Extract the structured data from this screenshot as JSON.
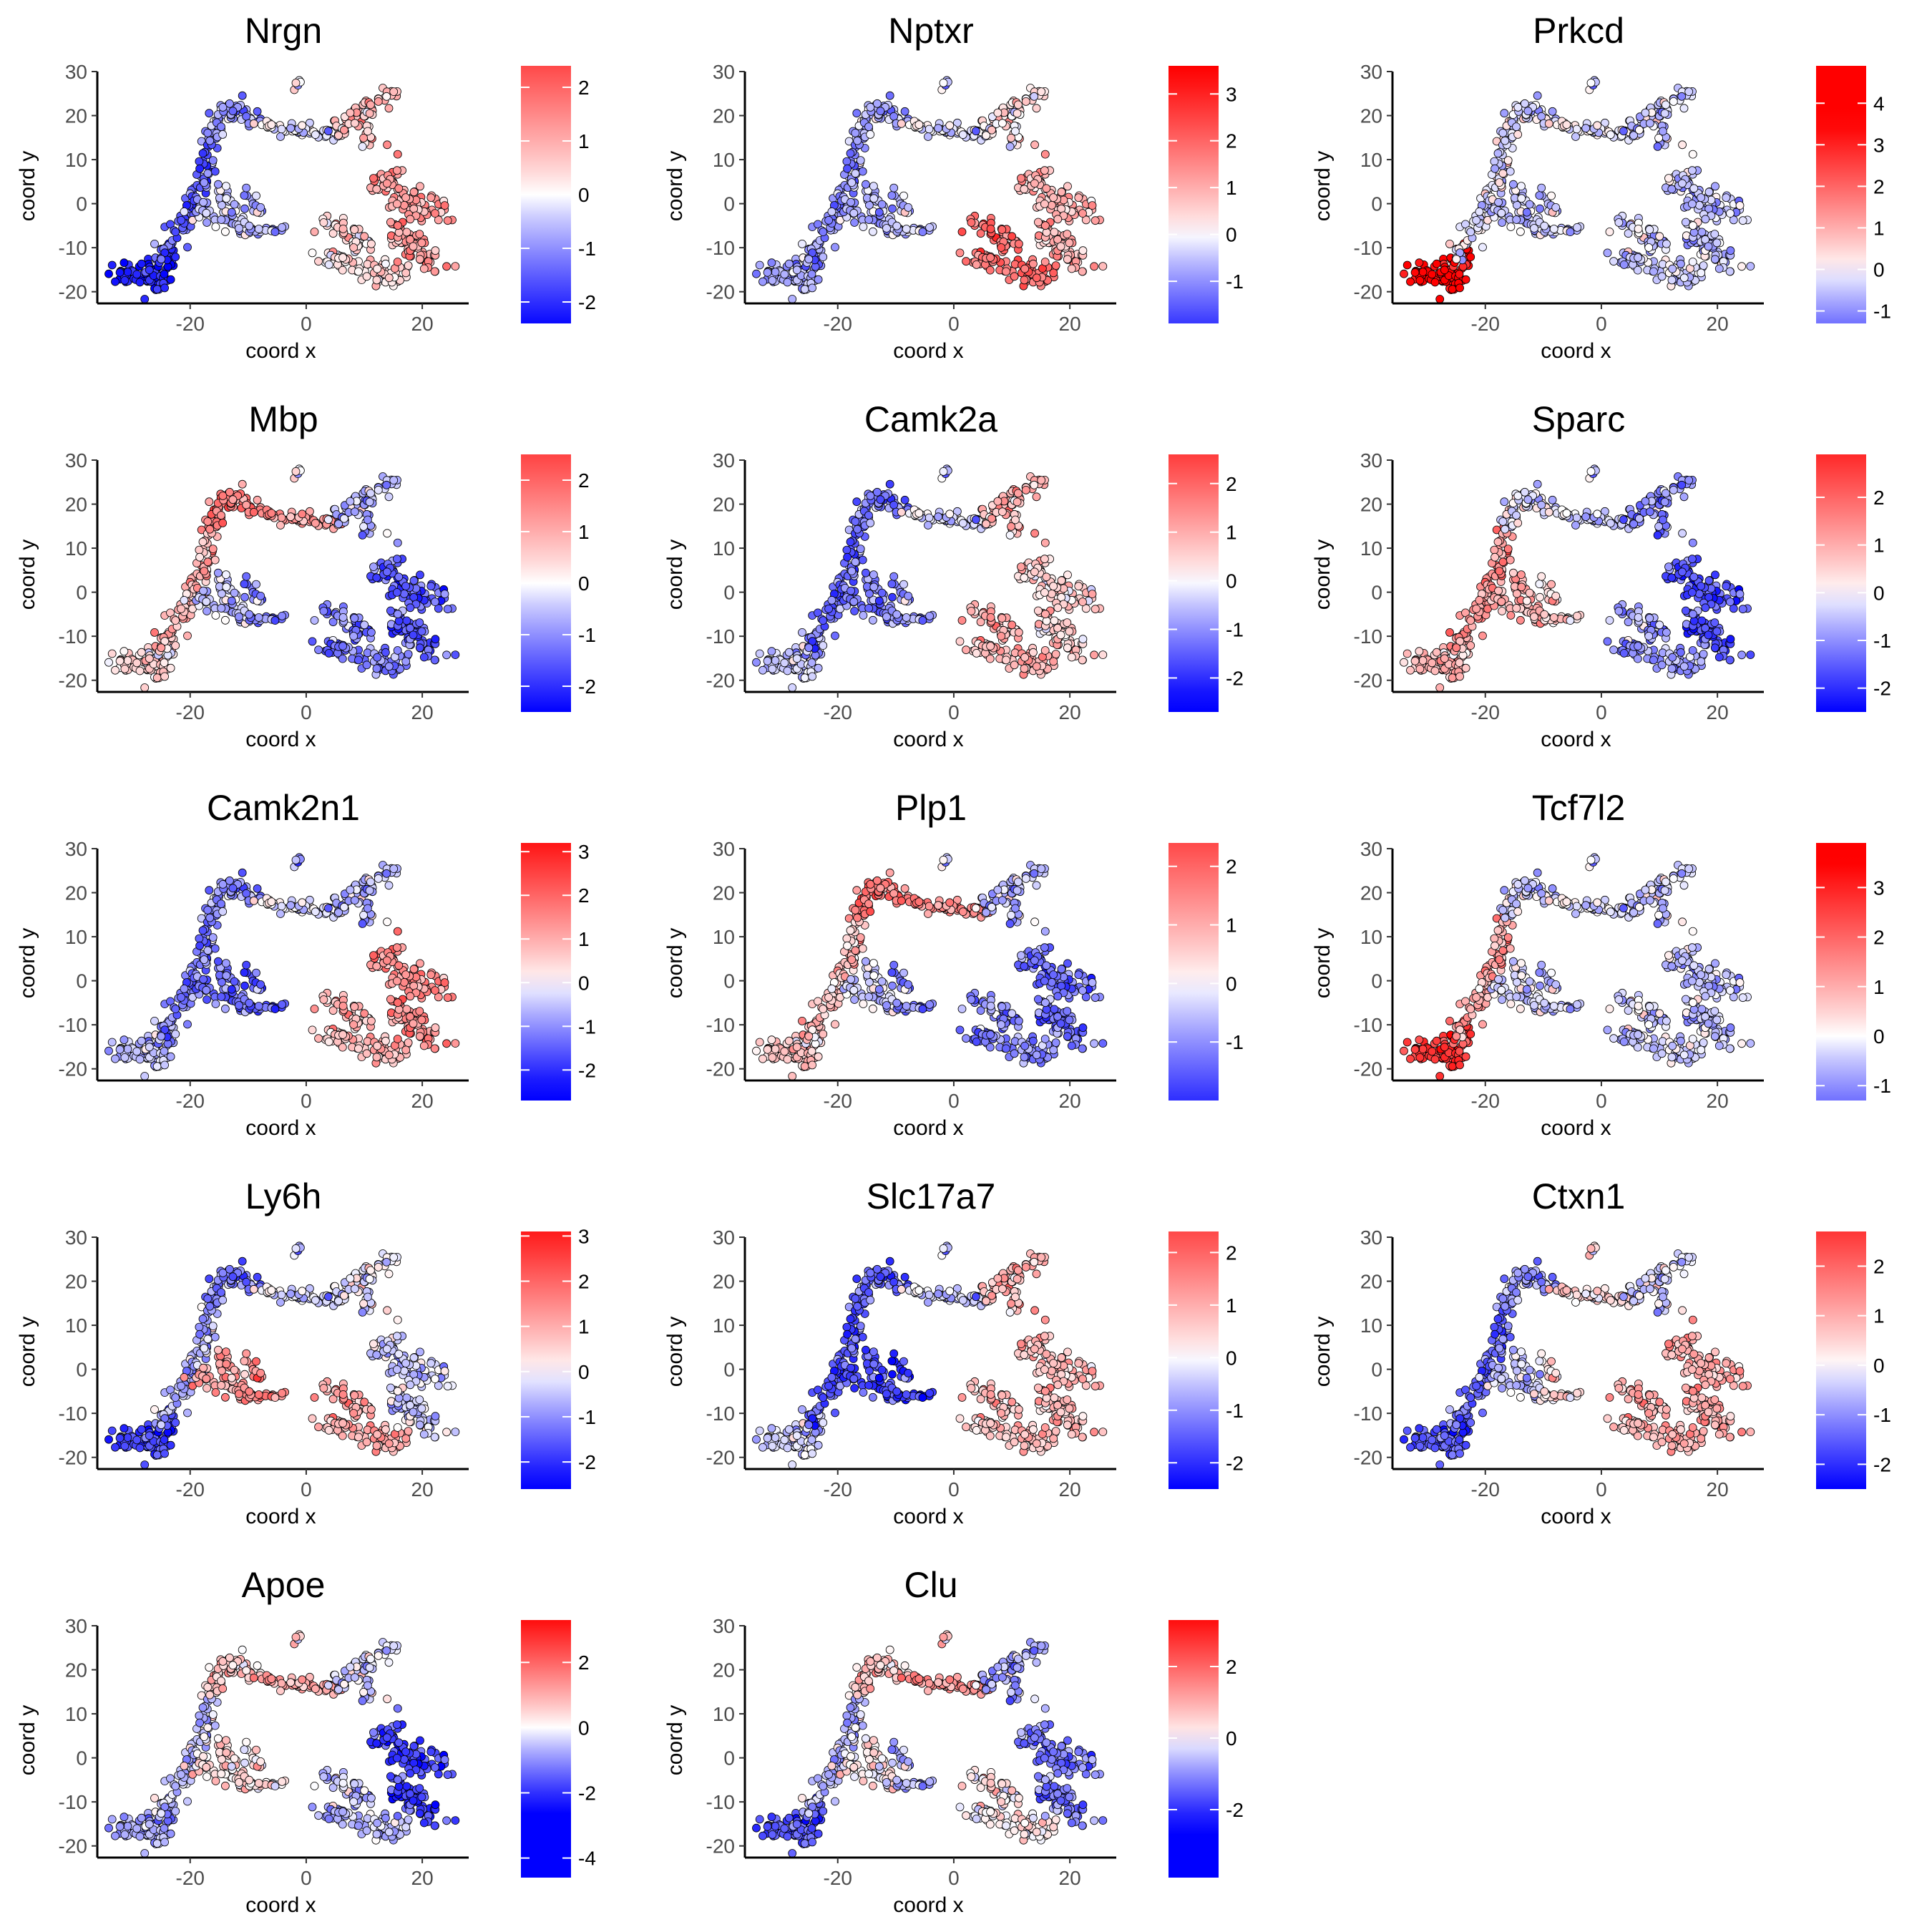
{
  "figure": {
    "point_stroke_color": "#000000",
    "low_color": "#0000ff",
    "mid_color": "#ffffff",
    "high_color": "#ff0000",
    "axis_color": "#000000"
  },
  "chart_data": [
    {
      "type": "scatter",
      "title": "Nrgn",
      "xlabel": "coord x",
      "ylabel": "coord y",
      "xlim": [
        -36,
        28
      ],
      "ylim": [
        -22,
        30
      ],
      "x_ticks": [
        -20,
        0,
        20
      ],
      "y_ticks": [
        -20,
        -10,
        0,
        10,
        20,
        30
      ],
      "colorbar": {
        "min": -2.4,
        "max": 2.4,
        "ticks": [
          -2,
          -1,
          0,
          1,
          2
        ]
      },
      "region_values": {
        "left_tail": -2.2,
        "left_arm": -1.5,
        "left_top": -0.9,
        "top_bridge": -0.3,
        "right_top": 0.8,
        "tip": 0.2,
        "center_blob": -0.4,
        "central_stub": -0.6,
        "lower_cluster": 0.4,
        "right_cluster": 1.2
      },
      "grid": false,
      "legend": "right"
    },
    {
      "type": "scatter",
      "title": "Nptxr",
      "xlabel": "coord x",
      "ylabel": "coord y",
      "xlim": [
        -36,
        28
      ],
      "ylim": [
        -22,
        30
      ],
      "x_ticks": [
        -20,
        0,
        20
      ],
      "y_ticks": [
        -20,
        -10,
        0,
        10,
        20,
        30
      ],
      "colorbar": {
        "min": -1.9,
        "max": 3.6,
        "ticks": [
          -1,
          0,
          1,
          2,
          3
        ]
      },
      "region_values": {
        "left_tail": -0.8,
        "left_arm": -1.0,
        "left_top": -0.7,
        "top_bridge": -0.3,
        "right_top": 0.3,
        "tip": -0.3,
        "center_blob": -0.6,
        "central_stub": -0.4,
        "lower_cluster": 1.8,
        "right_cluster": 0.9
      },
      "grid": false,
      "legend": "right"
    },
    {
      "type": "scatter",
      "title": "Prkcd",
      "xlabel": "coord x",
      "ylabel": "coord y",
      "xlim": [
        -36,
        28
      ],
      "ylim": [
        -22,
        30
      ],
      "x_ticks": [
        -20,
        0,
        20
      ],
      "y_ticks": [
        -20,
        -10,
        0,
        10,
        20,
        30
      ],
      "colorbar": {
        "min": -1.3,
        "max": 4.9,
        "ticks": [
          -1,
          0,
          1,
          2,
          3,
          4
        ]
      },
      "region_values": {
        "left_tail": 3.5,
        "left_arm": -0.2,
        "left_top": -0.3,
        "top_bridge": -0.2,
        "right_top": -0.4,
        "tip": -0.3,
        "center_blob": -0.4,
        "central_stub": -0.3,
        "lower_cluster": -0.4,
        "right_cluster": -0.5
      },
      "grid": false,
      "legend": "right"
    },
    {
      "type": "scatter",
      "title": "Mbp",
      "xlabel": "coord x",
      "ylabel": "coord y",
      "xlim": [
        -36,
        28
      ],
      "ylim": [
        -22,
        30
      ],
      "x_ticks": [
        -20,
        0,
        20
      ],
      "y_ticks": [
        -20,
        -10,
        0,
        10,
        20,
        30
      ],
      "colorbar": {
        "min": -2.5,
        "max": 2.5,
        "ticks": [
          -2,
          -1,
          0,
          1,
          2
        ]
      },
      "region_values": {
        "left_tail": 0.4,
        "left_arm": 0.9,
        "left_top": 1.6,
        "top_bridge": 1.1,
        "right_top": -0.6,
        "tip": 0.2,
        "center_blob": -0.4,
        "central_stub": -1.0,
        "lower_cluster": -1.2,
        "right_cluster": -1.5
      },
      "grid": false,
      "legend": "right"
    },
    {
      "type": "scatter",
      "title": "Camk2a",
      "xlabel": "coord x",
      "ylabel": "coord y",
      "xlim": [
        -36,
        28
      ],
      "ylim": [
        -22,
        30
      ],
      "x_ticks": [
        -20,
        0,
        20
      ],
      "y_ticks": [
        -20,
        -10,
        0,
        10,
        20,
        30
      ],
      "colorbar": {
        "min": -2.7,
        "max": 2.6,
        "ticks": [
          -2,
          -1,
          0,
          1,
          2
        ]
      },
      "region_values": {
        "left_tail": -0.5,
        "left_arm": -1.4,
        "left_top": -1.2,
        "top_bridge": -0.4,
        "right_top": 0.9,
        "tip": -0.4,
        "center_blob": -1.1,
        "central_stub": -0.8,
        "lower_cluster": 0.9,
        "right_cluster": 0.5
      },
      "grid": false,
      "legend": "right"
    },
    {
      "type": "scatter",
      "title": "Sparc",
      "xlabel": "coord x",
      "ylabel": "coord y",
      "xlim": [
        -36,
        28
      ],
      "ylim": [
        -22,
        30
      ],
      "x_ticks": [
        -20,
        0,
        20
      ],
      "y_ticks": [
        -20,
        -10,
        0,
        10,
        20,
        30
      ],
      "colorbar": {
        "min": -2.5,
        "max": 2.9,
        "ticks": [
          -2,
          -1,
          0,
          1,
          2
        ]
      },
      "region_values": {
        "left_tail": 0.8,
        "left_arm": 1.3,
        "left_top": -0.2,
        "top_bridge": -0.5,
        "right_top": -1.0,
        "tip": -0.3,
        "center_blob": 1.0,
        "central_stub": 0.6,
        "lower_cluster": -0.9,
        "right_cluster": -1.6
      },
      "grid": false,
      "legend": "right"
    },
    {
      "type": "scatter",
      "title": "Camk2n1",
      "xlabel": "coord x",
      "ylabel": "coord y",
      "xlim": [
        -36,
        28
      ],
      "ylim": [
        -22,
        30
      ],
      "x_ticks": [
        -20,
        0,
        20
      ],
      "y_ticks": [
        -20,
        -10,
        0,
        10,
        20,
        30
      ],
      "colorbar": {
        "min": -2.7,
        "max": 3.2,
        "ticks": [
          -2,
          -1,
          0,
          1,
          2,
          3
        ]
      },
      "region_values": {
        "left_tail": -0.6,
        "left_arm": -1.2,
        "left_top": -1.0,
        "top_bridge": -0.3,
        "right_top": -0.6,
        "tip": -0.8,
        "center_blob": -1.2,
        "central_stub": -1.4,
        "lower_cluster": 0.8,
        "right_cluster": 1.4
      },
      "grid": false,
      "legend": "right"
    },
    {
      "type": "scatter",
      "title": "Plp1",
      "xlabel": "coord x",
      "ylabel": "coord y",
      "xlim": [
        -36,
        28
      ],
      "ylim": [
        -22,
        30
      ],
      "x_ticks": [
        -20,
        0,
        20
      ],
      "y_ticks": [
        -20,
        -10,
        0,
        10,
        20,
        30
      ],
      "colorbar": {
        "min": -2.0,
        "max": 2.4,
        "ticks": [
          -1,
          0,
          1,
          2
        ]
      },
      "region_values": {
        "left_tail": 0.6,
        "left_arm": 0.7,
        "left_top": 1.7,
        "top_bridge": 1.3,
        "right_top": -0.6,
        "tip": -0.2,
        "center_blob": -0.3,
        "central_stub": -1.0,
        "lower_cluster": -1.1,
        "right_cluster": -1.3
      },
      "grid": false,
      "legend": "right"
    },
    {
      "type": "scatter",
      "title": "Tcf7l2",
      "xlabel": "coord x",
      "ylabel": "coord y",
      "xlim": [
        -36,
        28
      ],
      "ylim": [
        -22,
        30
      ],
      "x_ticks": [
        -20,
        0,
        20
      ],
      "y_ticks": [
        -20,
        -10,
        0,
        10,
        20,
        30
      ],
      "colorbar": {
        "min": -1.3,
        "max": 3.9,
        "ticks": [
          -1,
          0,
          1,
          2,
          3
        ]
      },
      "region_values": {
        "left_tail": 2.6,
        "left_arm": 1.1,
        "left_top": -0.4,
        "top_bridge": -0.3,
        "right_top": -0.4,
        "tip": -0.3,
        "center_blob": -0.2,
        "central_stub": -0.4,
        "lower_cluster": -0.4,
        "right_cluster": -0.5
      },
      "grid": false,
      "legend": "right"
    },
    {
      "type": "scatter",
      "title": "Ly6h",
      "xlabel": "coord x",
      "ylabel": "coord y",
      "xlim": [
        -36,
        28
      ],
      "ylim": [
        -22,
        30
      ],
      "x_ticks": [
        -20,
        0,
        20
      ],
      "y_ticks": [
        -20,
        -10,
        0,
        10,
        20,
        30
      ],
      "colorbar": {
        "min": -2.6,
        "max": 3.1,
        "ticks": [
          -2,
          -1,
          0,
          1,
          2,
          3
        ]
      },
      "region_values": {
        "left_tail": -1.8,
        "left_arm": -0.7,
        "left_top": -1.2,
        "top_bridge": -0.4,
        "right_top": -0.1,
        "tip": -0.5,
        "center_blob": 1.2,
        "central_stub": 1.6,
        "lower_cluster": 1.0,
        "right_cluster": -0.4
      },
      "grid": false,
      "legend": "right"
    },
    {
      "type": "scatter",
      "title": "Slc17a7",
      "xlabel": "coord x",
      "ylabel": "coord y",
      "xlim": [
        -36,
        28
      ],
      "ylim": [
        -22,
        30
      ],
      "x_ticks": [
        -20,
        0,
        20
      ],
      "y_ticks": [
        -20,
        -10,
        0,
        10,
        20,
        30
      ],
      "colorbar": {
        "min": -2.5,
        "max": 2.4,
        "ticks": [
          -2,
          -1,
          0,
          1,
          2
        ]
      },
      "region_values": {
        "left_tail": -0.4,
        "left_arm": -1.6,
        "left_top": -1.4,
        "top_bridge": -0.5,
        "right_top": 0.9,
        "tip": -0.4,
        "center_blob": -1.6,
        "central_stub": -1.8,
        "lower_cluster": 0.7,
        "right_cluster": 0.8
      },
      "grid": false,
      "legend": "right"
    },
    {
      "type": "scatter",
      "title": "Ctxn1",
      "xlabel": "coord x",
      "ylabel": "coord y",
      "xlim": [
        -36,
        28
      ],
      "ylim": [
        -22,
        30
      ],
      "x_ticks": [
        -20,
        0,
        20
      ],
      "y_ticks": [
        -20,
        -10,
        0,
        10,
        20,
        30
      ],
      "colorbar": {
        "min": -2.5,
        "max": 2.7,
        "ticks": [
          -2,
          -1,
          0,
          1,
          2
        ]
      },
      "region_values": {
        "left_tail": -1.6,
        "left_arm": -1.4,
        "left_top": -0.9,
        "top_bridge": 0.3,
        "right_top": -0.3,
        "tip": 0.6,
        "center_blob": -0.4,
        "central_stub": 0.5,
        "lower_cluster": 0.9,
        "right_cluster": 1.0
      },
      "grid": false,
      "legend": "right"
    },
    {
      "type": "scatter",
      "title": "Apoe",
      "xlabel": "coord x",
      "ylabel": "coord y",
      "xlim": [
        -36,
        28
      ],
      "ylim": [
        -22,
        30
      ],
      "x_ticks": [
        -20,
        0,
        20
      ],
      "y_ticks": [
        -20,
        -10,
        0,
        10,
        20,
        30
      ],
      "colorbar": {
        "min": -4.6,
        "max": 3.3,
        "ticks": [
          -4,
          -2,
          0,
          2
        ]
      },
      "region_values": {
        "left_tail": -0.8,
        "left_arm": -0.5,
        "left_top": 0.6,
        "top_bridge": 0.9,
        "right_top": -0.3,
        "tip": 0.7,
        "center_blob": 0.5,
        "central_stub": 0.4,
        "lower_cluster": -0.6,
        "right_cluster": -1.8
      },
      "grid": false,
      "legend": "right"
    },
    {
      "type": "scatter",
      "title": "Clu",
      "xlabel": "coord x",
      "ylabel": "coord y",
      "xlim": [
        -36,
        28
      ],
      "ylim": [
        -22,
        30
      ],
      "x_ticks": [
        -20,
        0,
        20
      ],
      "y_ticks": [
        -20,
        -10,
        0,
        10,
        20,
        30
      ],
      "colorbar": {
        "min": -3.9,
        "max": 3.3,
        "ticks": [
          -2,
          0,
          2
        ]
      },
      "region_values": {
        "left_tail": -1.6,
        "left_arm": -0.6,
        "left_top": 0.7,
        "top_bridge": 1.2,
        "right_top": -0.8,
        "tip": 0.9,
        "center_blob": 0.3,
        "central_stub": -0.6,
        "lower_cluster": 0.2,
        "right_cluster": -1.2
      },
      "grid": false,
      "legend": "right"
    }
  ]
}
